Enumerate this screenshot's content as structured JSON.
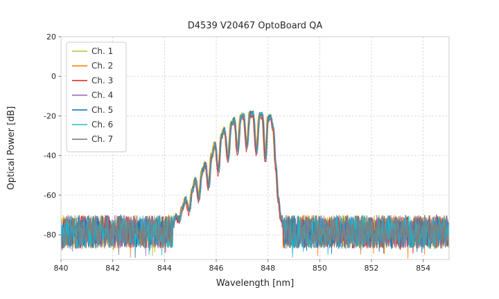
{
  "chart_data": {
    "type": "line",
    "title": "D4539 V20467 OptoBoard QA",
    "xlabel": "Wavelength [nm]",
    "ylabel": "Optical Power [dB]",
    "xlim": [
      840,
      855
    ],
    "ylim": [
      -92.5,
      20
    ],
    "xticks": [
      840,
      842,
      844,
      846,
      848,
      850,
      852,
      854
    ],
    "yticks": [
      20,
      0,
      -20,
      -40,
      -60,
      -80
    ],
    "grid": true,
    "legend_position": "upper-left",
    "series": [
      {
        "label": "Ch. 1",
        "color": "#bcbd22",
        "offset_db": 0.5,
        "shift_nm": -0.03
      },
      {
        "label": "Ch. 2",
        "color": "#ff7f0e",
        "offset_db": 0.0,
        "shift_nm": -0.02
      },
      {
        "label": "Ch. 3",
        "color": "#d62728",
        "offset_db": -1.5,
        "shift_nm": -0.01
      },
      {
        "label": "Ch. 4",
        "color": "#9467bd",
        "offset_db": 0.0,
        "shift_nm": 0.0
      },
      {
        "label": "Ch. 5",
        "color": "#1f77b4",
        "offset_db": 0.5,
        "shift_nm": 0.01
      },
      {
        "label": "Ch. 6",
        "color": "#17becf",
        "offset_db": 0.0,
        "shift_nm": 0.02
      },
      {
        "label": "Ch. 7",
        "color": "#7f7f7f",
        "offset_db": -0.5,
        "shift_nm": 0.03
      }
    ],
    "envelope_db_vs_nm": [
      [
        844.3,
        -76
      ],
      [
        844.45,
        -70
      ],
      [
        844.55,
        -73
      ],
      [
        844.7,
        -66
      ],
      [
        844.82,
        -62
      ],
      [
        844.95,
        -68
      ],
      [
        845.08,
        -57
      ],
      [
        845.2,
        -52
      ],
      [
        845.32,
        -62
      ],
      [
        845.45,
        -48
      ],
      [
        845.58,
        -44
      ],
      [
        845.7,
        -56
      ],
      [
        845.82,
        -40
      ],
      [
        845.95,
        -34
      ],
      [
        846.08,
        -48
      ],
      [
        846.2,
        -30
      ],
      [
        846.32,
        -27
      ],
      [
        846.45,
        -42
      ],
      [
        846.58,
        -24
      ],
      [
        846.7,
        -22
      ],
      [
        846.82,
        -38
      ],
      [
        846.95,
        -20.5
      ],
      [
        847.05,
        -19.5
      ],
      [
        847.18,
        -36
      ],
      [
        847.3,
        -18.8
      ],
      [
        847.42,
        -18.5
      ],
      [
        847.55,
        -38
      ],
      [
        847.68,
        -19
      ],
      [
        847.78,
        -19.5
      ],
      [
        847.9,
        -42
      ],
      [
        848.0,
        -21
      ],
      [
        848.1,
        -20.5
      ],
      [
        848.2,
        -26
      ],
      [
        848.3,
        -45
      ],
      [
        848.4,
        -62
      ],
      [
        848.5,
        -72
      ],
      [
        848.6,
        -76
      ]
    ],
    "noise_floor": {
      "mean_db": -78.5,
      "band_db": 17,
      "spike_db": 6
    },
    "style": {
      "grid_color": "#cccccc",
      "spine_color": "#cccccc",
      "tick_color": "#555555",
      "text_color": "#262626",
      "background": "#ffffff"
    }
  }
}
